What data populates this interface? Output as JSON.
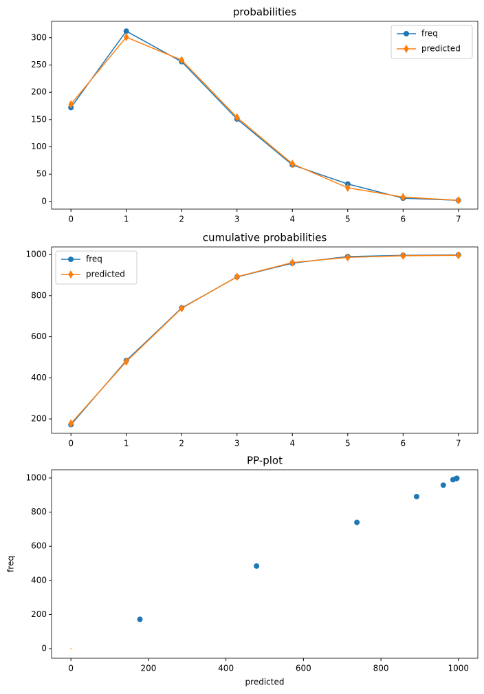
{
  "chart_data": [
    {
      "type": "line",
      "title": "probabilities",
      "legend": "upper right",
      "x": [
        0,
        1,
        2,
        3,
        4,
        5,
        6,
        7
      ],
      "series": [
        {
          "name": "freq",
          "color": "#1f77b4",
          "marker": "circle",
          "values": [
            172,
            312,
            256,
            151,
            67,
            32,
            6,
            2
          ]
        },
        {
          "name": "predicted",
          "color": "#ff7f0e",
          "marker": "diamond",
          "values": [
            178,
            301,
            259,
            154,
            69,
            25,
            8,
            2
          ]
        }
      ],
      "xlim": [
        -0.35,
        7.35
      ],
      "xticks": [
        0,
        1,
        2,
        3,
        4,
        5,
        6,
        7
      ],
      "ylim": [
        -14,
        330
      ],
      "yticks": [
        0,
        50,
        100,
        150,
        200,
        250,
        300
      ]
    },
    {
      "type": "line",
      "title": "cumulative probabilities",
      "legend": "upper left",
      "x": [
        0,
        1,
        2,
        3,
        4,
        5,
        6,
        7
      ],
      "series": [
        {
          "name": "freq",
          "color": "#1f77b4",
          "marker": "circle",
          "values": [
            172,
            484,
            740,
            891,
            958,
            990,
            996,
            998
          ]
        },
        {
          "name": "predicted",
          "color": "#ff7f0e",
          "marker": "diamond",
          "values": [
            178,
            479,
            738,
            892,
            961,
            986,
            994,
            996
          ]
        }
      ],
      "xlim": [
        -0.35,
        7.35
      ],
      "xticks": [
        0,
        1,
        2,
        3,
        4,
        5,
        6,
        7
      ],
      "ylim": [
        130,
        1037
      ],
      "yticks": [
        200,
        400,
        600,
        800,
        1000
      ]
    },
    {
      "type": "scatter",
      "title": "PP-plot",
      "xlabel": "predicted",
      "ylabel": "freq",
      "series": [
        {
          "color": "#1f77b4",
          "marker": "circle",
          "x": [
            178,
            479,
            738,
            892,
            961,
            986,
            994,
            996
          ],
          "values": [
            172,
            484,
            740,
            891,
            958,
            990,
            996,
            998
          ]
        },
        {
          "color": "#ff7f0e",
          "marker": "dash",
          "x": [
            0
          ],
          "values": [
            0
          ]
        }
      ],
      "xlim": [
        -50,
        1050
      ],
      "xticks": [
        0,
        200,
        400,
        600,
        800,
        1000
      ],
      "ylim": [
        -56,
        1048
      ],
      "yticks": [
        0,
        200,
        400,
        600,
        800,
        1000
      ]
    }
  ]
}
